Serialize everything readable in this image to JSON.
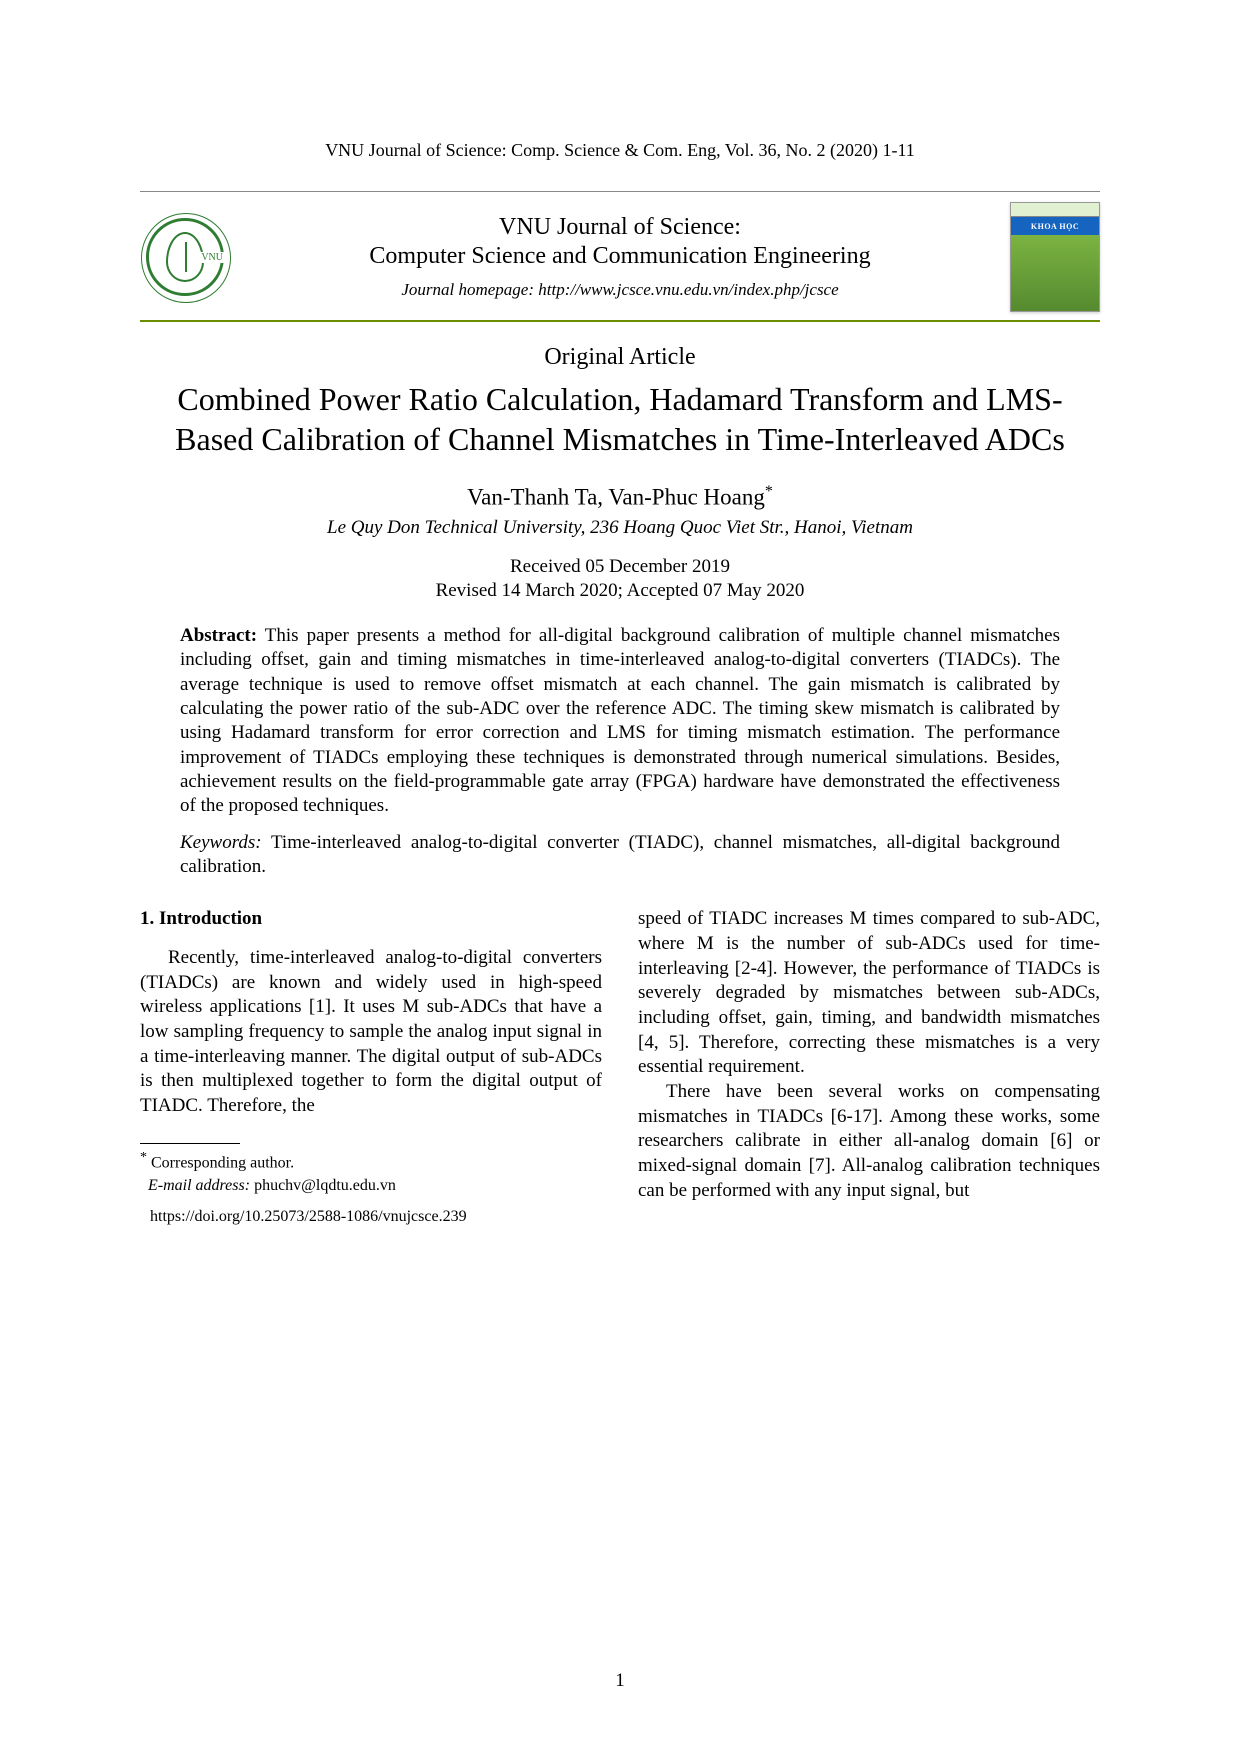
{
  "running_header": "VNU Journal of Science: Comp. Science & Com. Eng, Vol. 36, No. 2 (2020) 1-11",
  "banner": {
    "journal_line1": "VNU Journal of Science:",
    "journal_line2": "Computer Science and Communication Engineering",
    "homepage": "Journal homepage: http://www.jcsce.vnu.edu.vn/index.php/jcsce",
    "logo_text": "VNU",
    "cover_tag": "KHOA HỌC"
  },
  "article_type": "Original Article",
  "title": "Combined Power Ratio Calculation, Hadamard Transform and LMS-Based Calibration of Channel Mismatches in Time-Interleaved ADCs",
  "authors": "Van-Thanh Ta, Van-Phuc Hoang",
  "author_marker": "*",
  "affiliation": "Le Quy Don Technical University, 236 Hoang Quoc Viet Str., Hanoi, Vietnam",
  "dates": {
    "received": "Received 05 December 2019",
    "revised_accepted": "Revised 14 March 2020; Accepted 07 May 2020"
  },
  "abstract_label": "Abstract:",
  "abstract_text": " This paper presents a method for all-digital background calibration of multiple channel mismatches including offset, gain and timing mismatches in time-interleaved analog-to-digital converters (TIADCs). The average technique is used to remove offset mismatch at each channel. The gain mismatch is calibrated by calculating the power ratio of the sub-ADC over the reference ADC. The timing skew mismatch is calibrated by using Hadamard transform for error correction and LMS for timing mismatch estimation. The performance improvement of TIADCs employing these techniques is demonstrated through numerical simulations. Besides, achievement results on the field-programmable gate array (FPGA) hardware have demonstrated the effectiveness of the proposed techniques.",
  "keywords_label": "Keywords:",
  "keywords_text": " Time-interleaved analog-to-digital converter (TIADC), channel mismatches, all-digital background calibration.",
  "section1_heading": "1. Introduction",
  "col1_para": "Recently, time-interleaved analog-to-digital converters (TIADCs) are known and widely used in high-speed wireless applications [1]. It uses M sub-ADCs that have a low sampling frequency to sample the analog input signal in a time-interleaving manner. The digital output of sub-ADCs is then multiplexed together to form the digital output of TIADC. Therefore, the",
  "col2_para1": "speed of TIADC increases M times compared to sub-ADC, where M is the number of sub-ADCs used for time-interleaving [2-4]. However, the performance of TIADCs is severely degraded by mismatches between sub-ADCs, including offset, gain, timing, and bandwidth mismatches [4, 5]. Therefore, correcting these mismatches is a very essential requirement.",
  "col2_para2": "There have been several works on compensating mismatches in TIADCs [6-17]. Among these works, some researchers calibrate in either all-analog domain [6] or mixed-signal domain [7]. All-analog calibration techniques can be performed with any input signal, but",
  "footnote": {
    "corresponding": " Corresponding author.",
    "email_label": "E-mail address:",
    "email": " phuchv@lqdtu.edu.vn",
    "doi": "https://doi.org/10.25073/2588-1086/vnujcsce.239"
  },
  "page_number": "1",
  "colors": {
    "accent_green": "#6b8e00",
    "logo_green": "#2e7d32",
    "cover_green": "#4caf50",
    "cover_blue": "#1565c0"
  }
}
